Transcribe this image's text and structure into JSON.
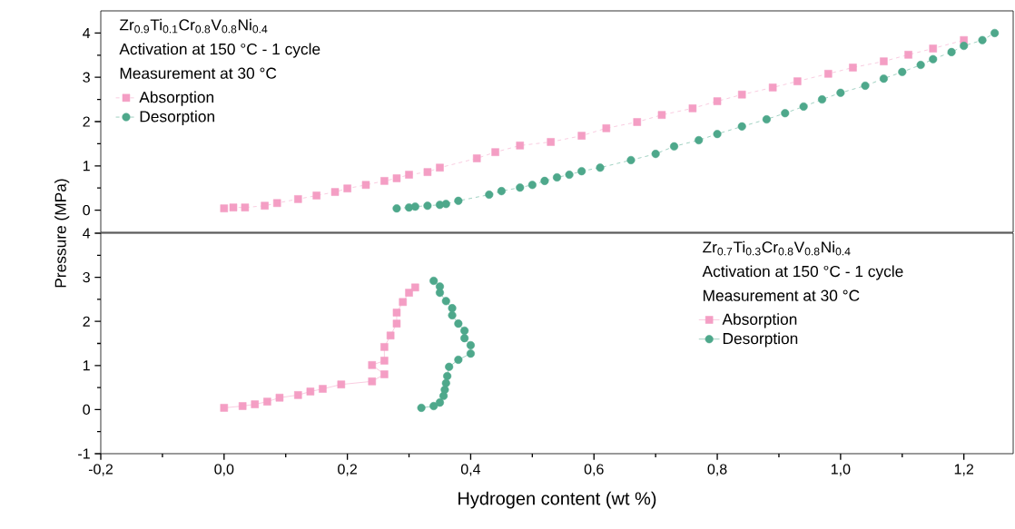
{
  "chart_data": [
    {
      "type": "line",
      "xlim": [
        -0.2,
        1.28
      ],
      "ylim": [
        -0.5,
        4.5
      ],
      "yticks": [
        0,
        1,
        2,
        3,
        4
      ],
      "tick_labels": "y",
      "legend": "top left",
      "line_style": "dashed",
      "annotations": [
        "Zr$_{0.9}$Ti$_{0.1}$Cr$_{0.8}$V$_{0.8}$Ni$_{0.4}$",
        "Activation at 150 °C - 1 cycle",
        "Measurement at 30 °C"
      ],
      "series": [
        {
          "name": "Absorption",
          "color": "#f49ec4",
          "marker": "square",
          "x": [
            0.0,
            0.015,
            0.034,
            0.066,
            0.086,
            0.12,
            0.15,
            0.18,
            0.2,
            0.23,
            0.26,
            0.28,
            0.3,
            0.33,
            0.35,
            0.41,
            0.44,
            0.48,
            0.53,
            0.58,
            0.62,
            0.67,
            0.71,
            0.76,
            0.8,
            0.84,
            0.89,
            0.93,
            0.98,
            1.02,
            1.07,
            1.11,
            1.15,
            1.2
          ],
          "values": [
            0.04,
            0.06,
            0.06,
            0.1,
            0.16,
            0.25,
            0.33,
            0.41,
            0.49,
            0.57,
            0.66,
            0.72,
            0.8,
            0.86,
            0.96,
            1.17,
            1.31,
            1.46,
            1.54,
            1.68,
            1.85,
            1.99,
            2.15,
            2.3,
            2.46,
            2.61,
            2.77,
            2.91,
            3.08,
            3.22,
            3.36,
            3.51,
            3.65,
            3.84
          ]
        },
        {
          "name": "Desorption",
          "color": "#4ea88b",
          "marker": "circle",
          "x": [
            0.28,
            0.3,
            0.31,
            0.33,
            0.35,
            0.36,
            0.38,
            0.43,
            0.45,
            0.48,
            0.5,
            0.52,
            0.54,
            0.56,
            0.58,
            0.61,
            0.66,
            0.7,
            0.73,
            0.77,
            0.8,
            0.84,
            0.88,
            0.91,
            0.94,
            0.97,
            1.0,
            1.04,
            1.07,
            1.1,
            1.13,
            1.15,
            1.18,
            1.2,
            1.23,
            1.25
          ],
          "values": [
            0.04,
            0.06,
            0.08,
            0.1,
            0.12,
            0.14,
            0.21,
            0.35,
            0.43,
            0.51,
            0.57,
            0.66,
            0.74,
            0.8,
            0.88,
            0.96,
            1.13,
            1.27,
            1.44,
            1.58,
            1.72,
            1.89,
            2.05,
            2.19,
            2.34,
            2.5,
            2.65,
            2.81,
            2.97,
            3.12,
            3.28,
            3.41,
            3.57,
            3.71,
            3.84,
            4.0
          ]
        }
      ]
    },
    {
      "type": "line",
      "xlim": [
        -0.2,
        1.28
      ],
      "ylim": [
        -1,
        4
      ],
      "yticks": [
        -1,
        0,
        1,
        2,
        3,
        4
      ],
      "xticks": [
        {
          "value": -0.2,
          "label": "-0,2"
        },
        {
          "value": 0,
          "label": "0,0"
        },
        {
          "value": 0.2,
          "label": "0,2"
        },
        {
          "value": 0.4,
          "label": "0,4"
        },
        {
          "value": 0.6,
          "label": "0,6"
        },
        {
          "value": 0.8,
          "label": "0,8"
        },
        {
          "value": 1.0,
          "label": "1,0"
        },
        {
          "value": 1.2,
          "label": "1,2"
        }
      ],
      "xlabel": "Hydrogen content (wt %)",
      "ylabel": "Pressure (MPa)",
      "legend": "top right",
      "line_style": "solid",
      "annotations": [
        "Zr$_{0.7}$Ti$_{0.3}$Cr$_{0.8}$V$_{0.8}$Ni$_{0.4}$",
        "Activation at 150 °C - 1 cycle",
        "Measurement at 30 °C"
      ],
      "series": [
        {
          "name": "Absorption",
          "color": "#f49ec4",
          "marker": "square",
          "x": [
            0.0,
            0.03,
            0.05,
            0.07,
            0.09,
            0.12,
            0.14,
            0.16,
            0.19,
            0.24,
            0.26,
            0.24,
            0.26,
            0.26,
            0.27,
            0.28,
            0.28,
            0.29,
            0.3,
            0.31
          ],
          "values": [
            0.04,
            0.08,
            0.12,
            0.18,
            0.27,
            0.33,
            0.41,
            0.47,
            0.57,
            0.64,
            0.8,
            1.01,
            1.11,
            1.42,
            1.68,
            1.95,
            2.2,
            2.44,
            2.65,
            2.77
          ]
        },
        {
          "name": "Desorption",
          "color": "#4ea88b",
          "marker": "circle",
          "x": [
            0.34,
            0.35,
            0.35,
            0.36,
            0.37,
            0.37,
            0.38,
            0.39,
            0.39,
            0.4,
            0.4,
            0.38,
            0.365,
            0.362,
            0.36,
            0.358,
            0.356,
            0.35,
            0.34,
            0.32
          ],
          "values": [
            2.92,
            2.79,
            2.65,
            2.46,
            2.3,
            2.14,
            1.95,
            1.79,
            1.62,
            1.46,
            1.27,
            1.13,
            0.97,
            0.76,
            0.6,
            0.45,
            0.31,
            0.16,
            0.08,
            0.04
          ]
        }
      ]
    }
  ]
}
